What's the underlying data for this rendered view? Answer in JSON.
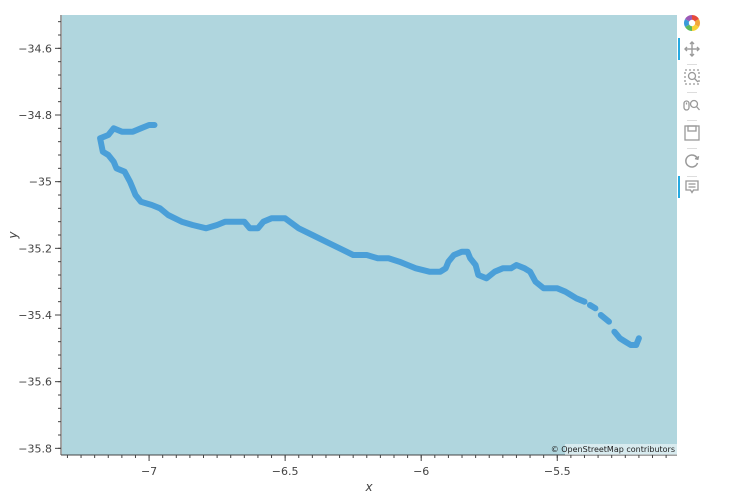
{
  "chart_data": {
    "type": "line",
    "xlabel": "x",
    "ylabel": "y",
    "xlim": [
      -7.32,
      -5.06
    ],
    "ylim": [
      -35.82,
      -34.5
    ],
    "xticks": [
      -7,
      -6.5,
      -6,
      -5.5
    ],
    "xtick_labels": [
      "−7",
      "−6.5",
      "−6",
      "−5.5"
    ],
    "yticks": [
      -34.6,
      -34.8,
      -35,
      -35.2,
      -35.4,
      -35.6,
      -35.8
    ],
    "ytick_labels": [
      "−34.6",
      "−34.8",
      "−35",
      "−35.2",
      "−35.4",
      "−35.6",
      "−35.8"
    ],
    "background": "#b0d6de",
    "line_color": "#4a9fd8",
    "grid": false,
    "attribution": "© OpenStreetMap contributors",
    "series": [
      {
        "segments": [
          [
            [
              -6.98,
              -34.83
            ],
            [
              -7.0,
              -34.83
            ],
            [
              -7.03,
              -34.84
            ],
            [
              -7.06,
              -34.85
            ],
            [
              -7.1,
              -34.85
            ],
            [
              -7.13,
              -34.84
            ],
            [
              -7.15,
              -34.86
            ],
            [
              -7.18,
              -34.87
            ],
            [
              -7.17,
              -34.91
            ],
            [
              -7.15,
              -34.92
            ],
            [
              -7.13,
              -34.94
            ],
            [
              -7.12,
              -34.96
            ],
            [
              -7.09,
              -34.97
            ],
            [
              -7.07,
              -35.0
            ],
            [
              -7.06,
              -35.02
            ],
            [
              -7.05,
              -35.04
            ],
            [
              -7.03,
              -35.06
            ],
            [
              -6.99,
              -35.07
            ],
            [
              -6.96,
              -35.08
            ],
            [
              -6.93,
              -35.1
            ],
            [
              -6.88,
              -35.12
            ],
            [
              -6.84,
              -35.13
            ],
            [
              -6.79,
              -35.14
            ],
            [
              -6.75,
              -35.13
            ],
            [
              -6.72,
              -35.12
            ],
            [
              -6.68,
              -35.12
            ],
            [
              -6.65,
              -35.12
            ],
            [
              -6.63,
              -35.14
            ],
            [
              -6.6,
              -35.14
            ],
            [
              -6.58,
              -35.12
            ],
            [
              -6.55,
              -35.11
            ],
            [
              -6.5,
              -35.11
            ],
            [
              -6.45,
              -35.14
            ],
            [
              -6.4,
              -35.16
            ],
            [
              -6.35,
              -35.18
            ],
            [
              -6.3,
              -35.2
            ],
            [
              -6.25,
              -35.22
            ],
            [
              -6.2,
              -35.22
            ],
            [
              -6.16,
              -35.23
            ],
            [
              -6.12,
              -35.23
            ],
            [
              -6.08,
              -35.24
            ],
            [
              -6.05,
              -35.25
            ],
            [
              -6.02,
              -35.26
            ],
            [
              -5.97,
              -35.27
            ],
            [
              -5.93,
              -35.27
            ],
            [
              -5.91,
              -35.26
            ],
            [
              -5.9,
              -35.24
            ],
            [
              -5.88,
              -35.22
            ],
            [
              -5.85,
              -35.21
            ],
            [
              -5.83,
              -35.21
            ],
            [
              -5.82,
              -35.23
            ],
            [
              -5.8,
              -35.25
            ],
            [
              -5.79,
              -35.28
            ],
            [
              -5.76,
              -35.29
            ],
            [
              -5.73,
              -35.27
            ],
            [
              -5.7,
              -35.26
            ],
            [
              -5.67,
              -35.26
            ],
            [
              -5.65,
              -35.25
            ],
            [
              -5.62,
              -35.26
            ],
            [
              -5.6,
              -35.27
            ],
            [
              -5.58,
              -35.3
            ],
            [
              -5.55,
              -35.32
            ],
            [
              -5.5,
              -35.32
            ],
            [
              -5.47,
              -35.33
            ],
            [
              -5.45,
              -35.34
            ],
            [
              -5.43,
              -35.35
            ],
            [
              -5.4,
              -35.36
            ]
          ],
          [
            [
              -5.38,
              -35.37
            ],
            [
              -5.36,
              -35.38
            ]
          ],
          [
            [
              -5.34,
              -35.4
            ],
            [
              -5.31,
              -35.42
            ]
          ],
          [
            [
              -5.29,
              -35.45
            ],
            [
              -5.27,
              -35.47
            ],
            [
              -5.25,
              -35.48
            ],
            [
              -5.23,
              -35.49
            ],
            [
              -5.21,
              -35.49
            ],
            [
              -5.2,
              -35.47
            ]
          ]
        ]
      }
    ]
  },
  "toolbar": {
    "tools": [
      {
        "name": "bokeh-logo-icon"
      },
      {
        "name": "pan-tool-icon",
        "active": true
      },
      {
        "name": "box-zoom-tool-icon"
      },
      {
        "name": "wheel-zoom-tool-icon"
      },
      {
        "name": "save-tool-icon"
      },
      {
        "name": "reset-tool-icon"
      },
      {
        "name": "hover-tool-icon",
        "active": true
      }
    ]
  }
}
